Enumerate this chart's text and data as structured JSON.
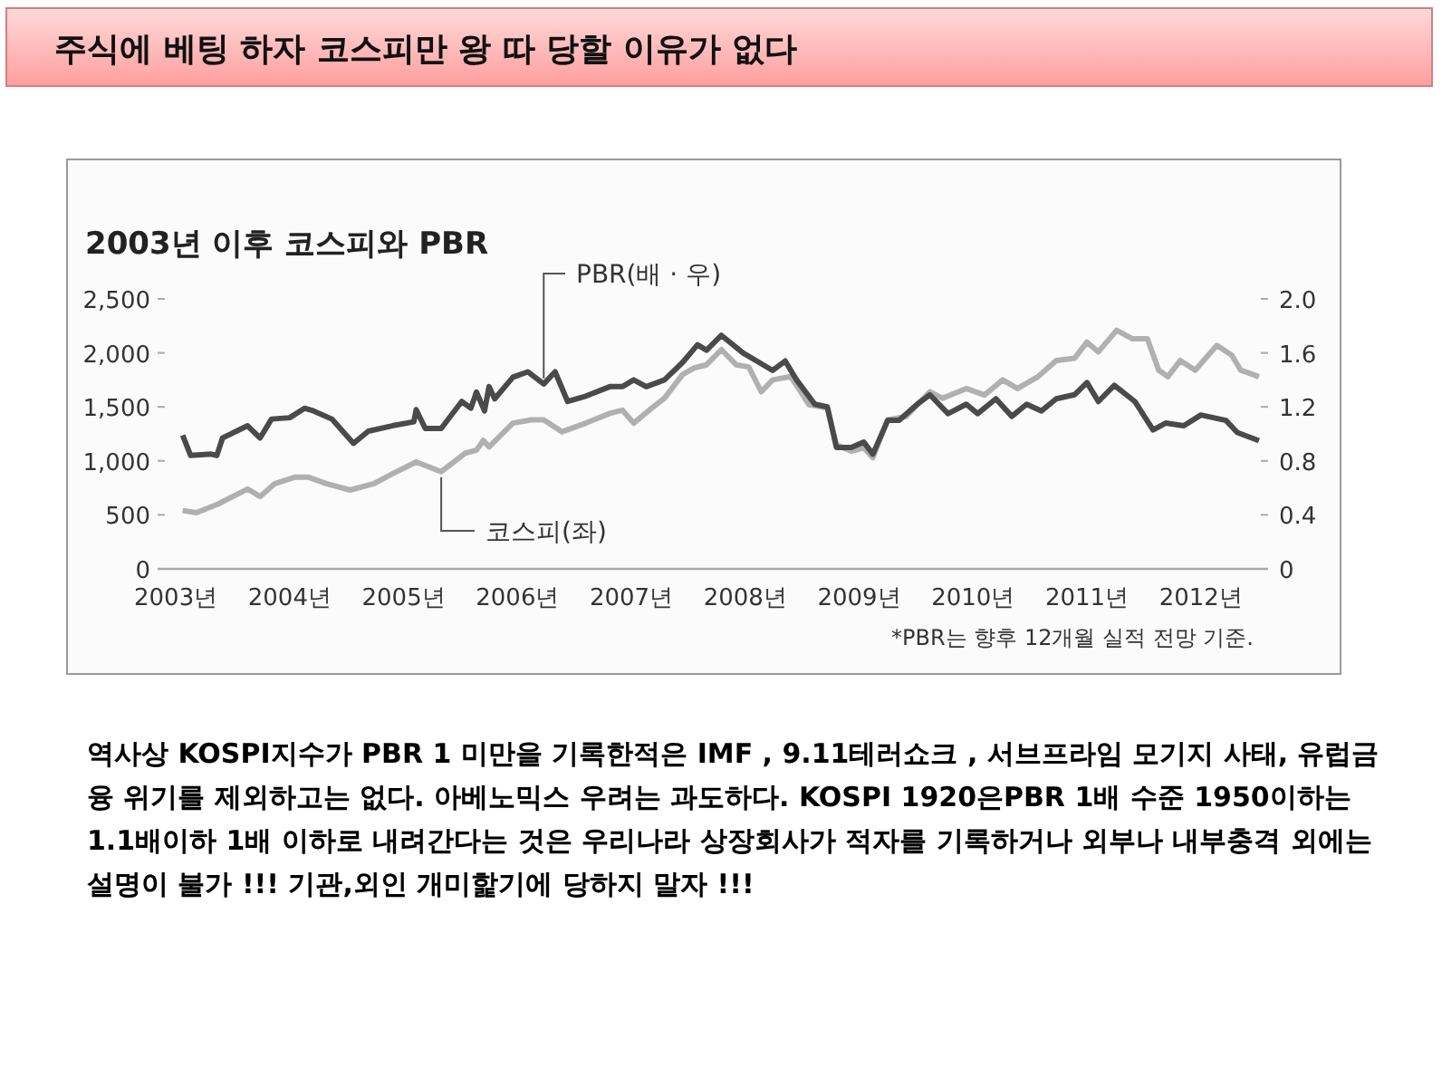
{
  "chart_data": {
    "type": "line",
    "title": "주식에 베팅 하자 코스피만 왕 따 당할 이유가 없다",
    "subtitle": "2003년 이후 코스피와 PBR",
    "xlim": [
      2002.84,
      2012.59
    ],
    "xticks": [
      {
        "value": 2003,
        "label": "2003년"
      },
      {
        "value": 2004,
        "label": "2004년"
      },
      {
        "value": 2005,
        "label": "2005년"
      },
      {
        "value": 2006,
        "label": "2006년"
      },
      {
        "value": 2007,
        "label": "2007년"
      },
      {
        "value": 2008,
        "label": "2008년"
      },
      {
        "value": 2009,
        "label": "2009년"
      },
      {
        "value": 2010,
        "label": "2010년"
      },
      {
        "value": 2011,
        "label": "2011년"
      },
      {
        "value": 2012,
        "label": "2012년"
      }
    ],
    "ylim": [
      0,
      2500
    ],
    "yticks": [
      0,
      500,
      {
        "value": 1000,
        "label": "1,000"
      },
      {
        "value": 1500,
        "label": "1,500"
      },
      {
        "value": 2000,
        "label": "2,000"
      },
      {
        "value": 2500,
        "label": "2,500"
      }
    ],
    "y2lim": [
      0,
      2.0
    ],
    "y2ticks": [
      0,
      0.4,
      0.8,
      1.2,
      1.6,
      {
        "value": 2,
        "label": "2.0"
      }
    ],
    "series": [
      {
        "name": "코스피(좌)",
        "color": "#b0b0b0",
        "x": [
          2003.06,
          2003.18,
          2003.37,
          2003.52,
          2003.63,
          2003.74,
          2003.87,
          2004.05,
          2004.16,
          2004.32,
          2004.53,
          2004.74,
          2004.9,
          2005.11,
          2005.33,
          2005.54,
          2005.64,
          2005.7,
          2005.75,
          2005.96,
          2006.12,
          2006.23,
          2006.39,
          2006.6,
          2006.81,
          2006.92,
          2007.02,
          2007.18,
          2007.29,
          2007.45,
          2007.55,
          2007.66,
          2007.79,
          2007.92,
          2008.03,
          2008.14,
          2008.24,
          2008.4,
          2008.56,
          2008.72,
          2008.8,
          2008.93,
          2009.04,
          2009.12,
          2009.25,
          2009.41,
          2009.62,
          2009.73,
          2009.94,
          2010.1,
          2010.26,
          2010.39,
          2010.57,
          2010.73,
          2010.89,
          2011.0,
          2011.1,
          2011.26,
          2011.4,
          2011.53,
          2011.63,
          2011.71,
          2011.82,
          2011.95,
          2012.14,
          2012.27,
          2012.35,
          2012.51
        ],
        "values": [
          540,
          520,
          600,
          680,
          740,
          670,
          790,
          850,
          850,
          790,
          730,
          790,
          880,
          990,
          900,
          1070,
          1100,
          1190,
          1130,
          1350,
          1380,
          1380,
          1270,
          1350,
          1440,
          1470,
          1350,
          1490,
          1580,
          1800,
          1860,
          1890,
          2030,
          1890,
          1870,
          1640,
          1750,
          1780,
          1520,
          1490,
          1150,
          1090,
          1120,
          1030,
          1380,
          1410,
          1640,
          1580,
          1670,
          1610,
          1750,
          1670,
          1780,
          1930,
          1950,
          2100,
          2010,
          2210,
          2130,
          2130,
          1840,
          1780,
          1930,
          1840,
          2070,
          1980,
          1840,
          1780
        ]
      },
      {
        "name": "PBR(배 · 우)",
        "color": "#4a4a4a",
        "axis": "y2",
        "x": [
          2003.06,
          2003.13,
          2003.31,
          2003.36,
          2003.41,
          2003.63,
          2003.74,
          2003.84,
          2004.0,
          2004.13,
          2004.21,
          2004.37,
          2004.56,
          2004.69,
          2004.9,
          2005.09,
          2005.11,
          2005.19,
          2005.33,
          2005.51,
          2005.59,
          2005.64,
          2005.71,
          2005.75,
          2005.8,
          2005.96,
          2006.09,
          2006.23,
          2006.33,
          2006.44,
          2006.6,
          2006.81,
          2006.92,
          2007.02,
          2007.13,
          2007.29,
          2007.45,
          2007.58,
          2007.66,
          2007.79,
          2007.98,
          2008.14,
          2008.24,
          2008.35,
          2008.45,
          2008.61,
          2008.72,
          2008.8,
          2008.93,
          2009.04,
          2009.12,
          2009.25,
          2009.35,
          2009.51,
          2009.62,
          2009.78,
          2009.94,
          2010.04,
          2010.2,
          2010.34,
          2010.47,
          2010.6,
          2010.73,
          2010.89,
          2011.0,
          2011.1,
          2011.24,
          2011.42,
          2011.58,
          2011.69,
          2011.85,
          2012.0,
          2012.22,
          2012.32,
          2012.51
        ],
        "values": [
          0.99,
          0.84,
          0.85,
          0.84,
          0.97,
          1.06,
          0.97,
          1.11,
          1.12,
          1.19,
          1.17,
          1.11,
          0.93,
          1.02,
          1.06,
          1.09,
          1.18,
          1.04,
          1.04,
          1.24,
          1.19,
          1.31,
          1.17,
          1.35,
          1.26,
          1.42,
          1.46,
          1.37,
          1.46,
          1.24,
          1.28,
          1.35,
          1.35,
          1.4,
          1.35,
          1.4,
          1.53,
          1.66,
          1.62,
          1.73,
          1.6,
          1.52,
          1.47,
          1.54,
          1.4,
          1.22,
          1.2,
          0.9,
          0.9,
          0.94,
          0.85,
          1.1,
          1.1,
          1.22,
          1.29,
          1.15,
          1.22,
          1.15,
          1.26,
          1.13,
          1.22,
          1.17,
          1.26,
          1.29,
          1.38,
          1.24,
          1.36,
          1.24,
          1.03,
          1.08,
          1.06,
          1.14,
          1.1,
          1.01,
          0.95
        ]
      }
    ],
    "annotations": [
      "*PBR는 향후 12개월 실적 전망 기준.",
      "역사상 KOSPI지수가 PBR 1 미만을 기록한적은 IMF , 9.11테러쇼크 , 서브프라임 모기지 사태, 유럽금융 위기를 제외하고는 없다. 아베노믹스 우려는 과도하다. KOSPI 1920은PBR 1배 수준 1950이하는 1.1배이하 1배 이하로 내려간다는 것은 우리나라 상장회사가 적자를 기록하거나 외부나 내부충격 외에는 설명이 불가 !!! 기관,외인 개미핥기에 당하지 말자 !!!"
    ]
  }
}
